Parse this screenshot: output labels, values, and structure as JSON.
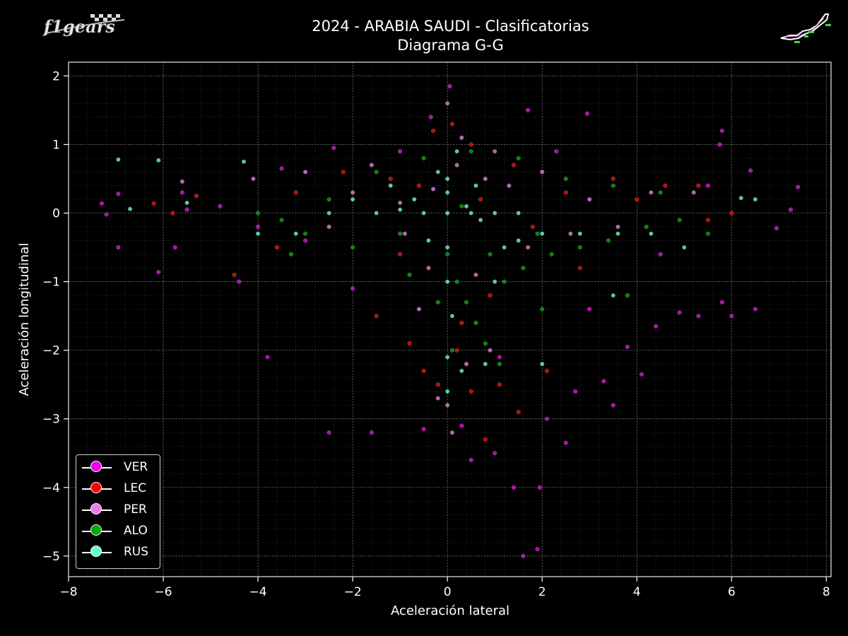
{
  "chart_data": {
    "type": "scatter",
    "title": "2024 - ARABIA SAUDI - Clasificatorias",
    "subtitle": "Diagrama G-G",
    "xlabel": "Aceleración lateral",
    "ylabel": "Aceleración longitudinal",
    "xlim": [
      -8,
      8.1
    ],
    "ylim": [
      -5.3,
      2.2
    ],
    "xticks": [
      -8,
      -6,
      -4,
      -2,
      0,
      2,
      4,
      6,
      8
    ],
    "yticks": [
      -5,
      -4,
      -3,
      -2,
      -1,
      0,
      1,
      2
    ],
    "grid": true,
    "legend_position": "lower-left",
    "background": "#000000",
    "series": [
      {
        "name": "VER",
        "color": "#ee00ee",
        "points": [
          [
            -7.3,
            0.14
          ],
          [
            -7.2,
            -0.02
          ],
          [
            -6.95,
            0.28
          ],
          [
            -6.95,
            -0.5
          ],
          [
            -6.1,
            -0.86
          ],
          [
            -5.75,
            -0.5
          ],
          [
            -5.6,
            0.3
          ],
          [
            -5.5,
            0.05
          ],
          [
            -4.8,
            0.1
          ],
          [
            -4.4,
            -1.0
          ],
          [
            -3.8,
            -2.1
          ],
          [
            -3.5,
            0.65
          ],
          [
            -2.5,
            -3.2
          ],
          [
            -1.6,
            -3.2
          ],
          [
            -0.5,
            -3.15
          ],
          [
            0.3,
            -3.1
          ],
          [
            0.5,
            -3.6
          ],
          [
            1.0,
            -3.5
          ],
          [
            1.4,
            -4.0
          ],
          [
            1.6,
            -5.0
          ],
          [
            1.9,
            -4.9
          ],
          [
            1.95,
            -4.0
          ],
          [
            2.1,
            -3.0
          ],
          [
            2.5,
            -3.35
          ],
          [
            2.7,
            -2.6
          ],
          [
            3.3,
            -2.45
          ],
          [
            3.5,
            -2.8
          ],
          [
            3.8,
            -1.95
          ],
          [
            4.1,
            -2.35
          ],
          [
            4.4,
            -1.65
          ],
          [
            4.9,
            -1.45
          ],
          [
            5.3,
            -1.5
          ],
          [
            5.8,
            -1.3
          ],
          [
            6.0,
            -1.5
          ],
          [
            6.5,
            -1.4
          ],
          [
            6.95,
            -0.22
          ],
          [
            7.25,
            0.05
          ],
          [
            7.4,
            0.38
          ],
          [
            5.8,
            1.2
          ],
          [
            5.75,
            1.0
          ],
          [
            6.4,
            0.62
          ],
          [
            2.95,
            1.45
          ],
          [
            1.7,
            1.5
          ],
          [
            0.05,
            1.85
          ],
          [
            -0.35,
            1.4
          ],
          [
            -1.0,
            0.9
          ],
          [
            -2.4,
            0.95
          ],
          [
            -3.0,
            -0.4
          ],
          [
            -2.0,
            -1.1
          ],
          [
            3.0,
            -1.4
          ],
          [
            4.5,
            -0.6
          ],
          [
            5.5,
            0.4
          ],
          [
            -4.0,
            -0.2
          ],
          [
            2.3,
            0.9
          ],
          [
            1.1,
            -2.1
          ]
        ]
      },
      {
        "name": "LEC",
        "color": "#ff0000",
        "points": [
          [
            -6.2,
            0.14
          ],
          [
            -5.8,
            0.0
          ],
          [
            -5.3,
            0.25
          ],
          [
            -4.5,
            -0.9
          ],
          [
            -3.2,
            0.3
          ],
          [
            -1.5,
            -1.5
          ],
          [
            -0.8,
            -1.9
          ],
          [
            -0.5,
            -2.3
          ],
          [
            -0.2,
            -2.5
          ],
          [
            0.2,
            -2.0
          ],
          [
            0.5,
            -2.6
          ],
          [
            0.8,
            -3.3
          ],
          [
            1.1,
            -2.5
          ],
          [
            1.5,
            -2.9
          ],
          [
            2.1,
            -2.3
          ],
          [
            -0.3,
            1.2
          ],
          [
            0.1,
            1.3
          ],
          [
            0.5,
            1.0
          ],
          [
            -1.2,
            0.5
          ],
          [
            1.4,
            0.7
          ],
          [
            2.5,
            0.3
          ],
          [
            3.5,
            0.5
          ],
          [
            4.6,
            0.4
          ],
          [
            5.3,
            0.4
          ],
          [
            6.0,
            0.0
          ],
          [
            -2.2,
            0.6
          ],
          [
            -0.6,
            0.4
          ],
          [
            0.7,
            0.2
          ],
          [
            1.8,
            -0.2
          ],
          [
            -1.0,
            -0.6
          ],
          [
            0.9,
            -1.2
          ],
          [
            0.3,
            -1.6
          ],
          [
            2.8,
            -0.8
          ],
          [
            -3.6,
            -0.5
          ],
          [
            4.0,
            0.2
          ],
          [
            5.5,
            -0.1
          ]
        ]
      },
      {
        "name": "PER",
        "color": "#e87ce8",
        "points": [
          [
            -5.6,
            0.46
          ],
          [
            -4.1,
            0.5
          ],
          [
            -3.0,
            0.6
          ],
          [
            -2.0,
            0.3
          ],
          [
            -1.0,
            0.15
          ],
          [
            -0.3,
            0.35
          ],
          [
            0.0,
            1.6
          ],
          [
            0.3,
            1.1
          ],
          [
            1.0,
            0.9
          ],
          [
            2.0,
            0.6
          ],
          [
            3.0,
            0.2
          ],
          [
            4.3,
            0.3
          ],
          [
            5.2,
            0.3
          ],
          [
            0.1,
            -3.2
          ],
          [
            0.0,
            -2.8
          ],
          [
            -0.2,
            -2.7
          ],
          [
            0.4,
            -2.2
          ],
          [
            0.9,
            -2.0
          ],
          [
            -0.6,
            -1.4
          ],
          [
            0.6,
            -0.9
          ],
          [
            1.7,
            -0.5
          ],
          [
            -2.5,
            -0.2
          ],
          [
            -1.6,
            0.7
          ],
          [
            1.3,
            0.4
          ],
          [
            2.6,
            -0.3
          ],
          [
            3.6,
            -0.2
          ],
          [
            -0.9,
            -0.3
          ],
          [
            0.2,
            0.7
          ],
          [
            -0.4,
            -0.8
          ],
          [
            0.8,
            0.5
          ]
        ]
      },
      {
        "name": "ALO",
        "color": "#00aa00",
        "points": [
          [
            -4.0,
            0.0
          ],
          [
            -3.5,
            -0.1
          ],
          [
            -3.0,
            -0.3
          ],
          [
            -2.0,
            -0.5
          ],
          [
            -1.0,
            -0.3
          ],
          [
            0.0,
            -0.6
          ],
          [
            0.2,
            -1.0
          ],
          [
            0.4,
            -1.3
          ],
          [
            0.6,
            -1.6
          ],
          [
            0.8,
            -1.9
          ],
          [
            1.2,
            -1.0
          ],
          [
            1.6,
            -0.8
          ],
          [
            2.2,
            -0.6
          ],
          [
            2.8,
            -0.5
          ],
          [
            3.4,
            -0.4
          ],
          [
            4.2,
            -0.2
          ],
          [
            4.9,
            -0.1
          ],
          [
            5.5,
            -0.3
          ],
          [
            -1.5,
            0.6
          ],
          [
            -0.5,
            0.8
          ],
          [
            0.5,
            0.9
          ],
          [
            1.5,
            0.8
          ],
          [
            2.5,
            0.5
          ],
          [
            3.5,
            0.4
          ],
          [
            4.5,
            0.3
          ],
          [
            -2.5,
            0.2
          ],
          [
            0.1,
            -2.0
          ],
          [
            -0.2,
            -1.3
          ],
          [
            0.9,
            -0.6
          ],
          [
            1.9,
            -0.3
          ],
          [
            -3.3,
            -0.6
          ],
          [
            2.0,
            -1.4
          ],
          [
            3.8,
            -1.2
          ],
          [
            -0.8,
            -0.9
          ],
          [
            0.3,
            0.1
          ],
          [
            1.1,
            -2.2
          ]
        ]
      },
      {
        "name": "RUS",
        "color": "#66ffcc",
        "points": [
          [
            -6.95,
            0.78
          ],
          [
            -6.1,
            0.77
          ],
          [
            -6.7,
            0.06
          ],
          [
            -4.3,
            0.75
          ],
          [
            -5.5,
            0.15
          ],
          [
            -4.0,
            -0.3
          ],
          [
            -3.2,
            -0.3
          ],
          [
            -2.5,
            0.0
          ],
          [
            -1.5,
            0.0
          ],
          [
            -1.0,
            0.05
          ],
          [
            -0.5,
            0.0
          ],
          [
            0.0,
            0.0
          ],
          [
            0.5,
            0.0
          ],
          [
            1.0,
            0.0
          ],
          [
            1.5,
            0.0
          ],
          [
            0.0,
            0.5
          ],
          [
            0.0,
            0.3
          ],
          [
            0.0,
            -0.5
          ],
          [
            0.0,
            -1.0
          ],
          [
            0.1,
            -1.5
          ],
          [
            0.0,
            -2.1
          ],
          [
            0.0,
            -2.6
          ],
          [
            0.3,
            -2.3
          ],
          [
            0.8,
            -2.2
          ],
          [
            2.0,
            -2.2
          ],
          [
            -0.4,
            -0.4
          ],
          [
            0.2,
            0.9
          ],
          [
            -0.2,
            0.6
          ],
          [
            0.6,
            0.4
          ],
          [
            1.2,
            -0.5
          ],
          [
            2.0,
            -0.3
          ],
          [
            2.8,
            -0.3
          ],
          [
            3.6,
            -0.3
          ],
          [
            4.3,
            -0.3
          ],
          [
            5.0,
            -0.5
          ],
          [
            6.2,
            0.22
          ],
          [
            6.5,
            0.2
          ],
          [
            -1.2,
            0.4
          ],
          [
            -2.0,
            0.2
          ],
          [
            1.0,
            -1.0
          ],
          [
            1.5,
            -0.4
          ],
          [
            3.5,
            -1.2
          ],
          [
            0.4,
            0.1
          ],
          [
            -0.7,
            0.2
          ],
          [
            0.7,
            -0.1
          ]
        ]
      }
    ]
  }
}
